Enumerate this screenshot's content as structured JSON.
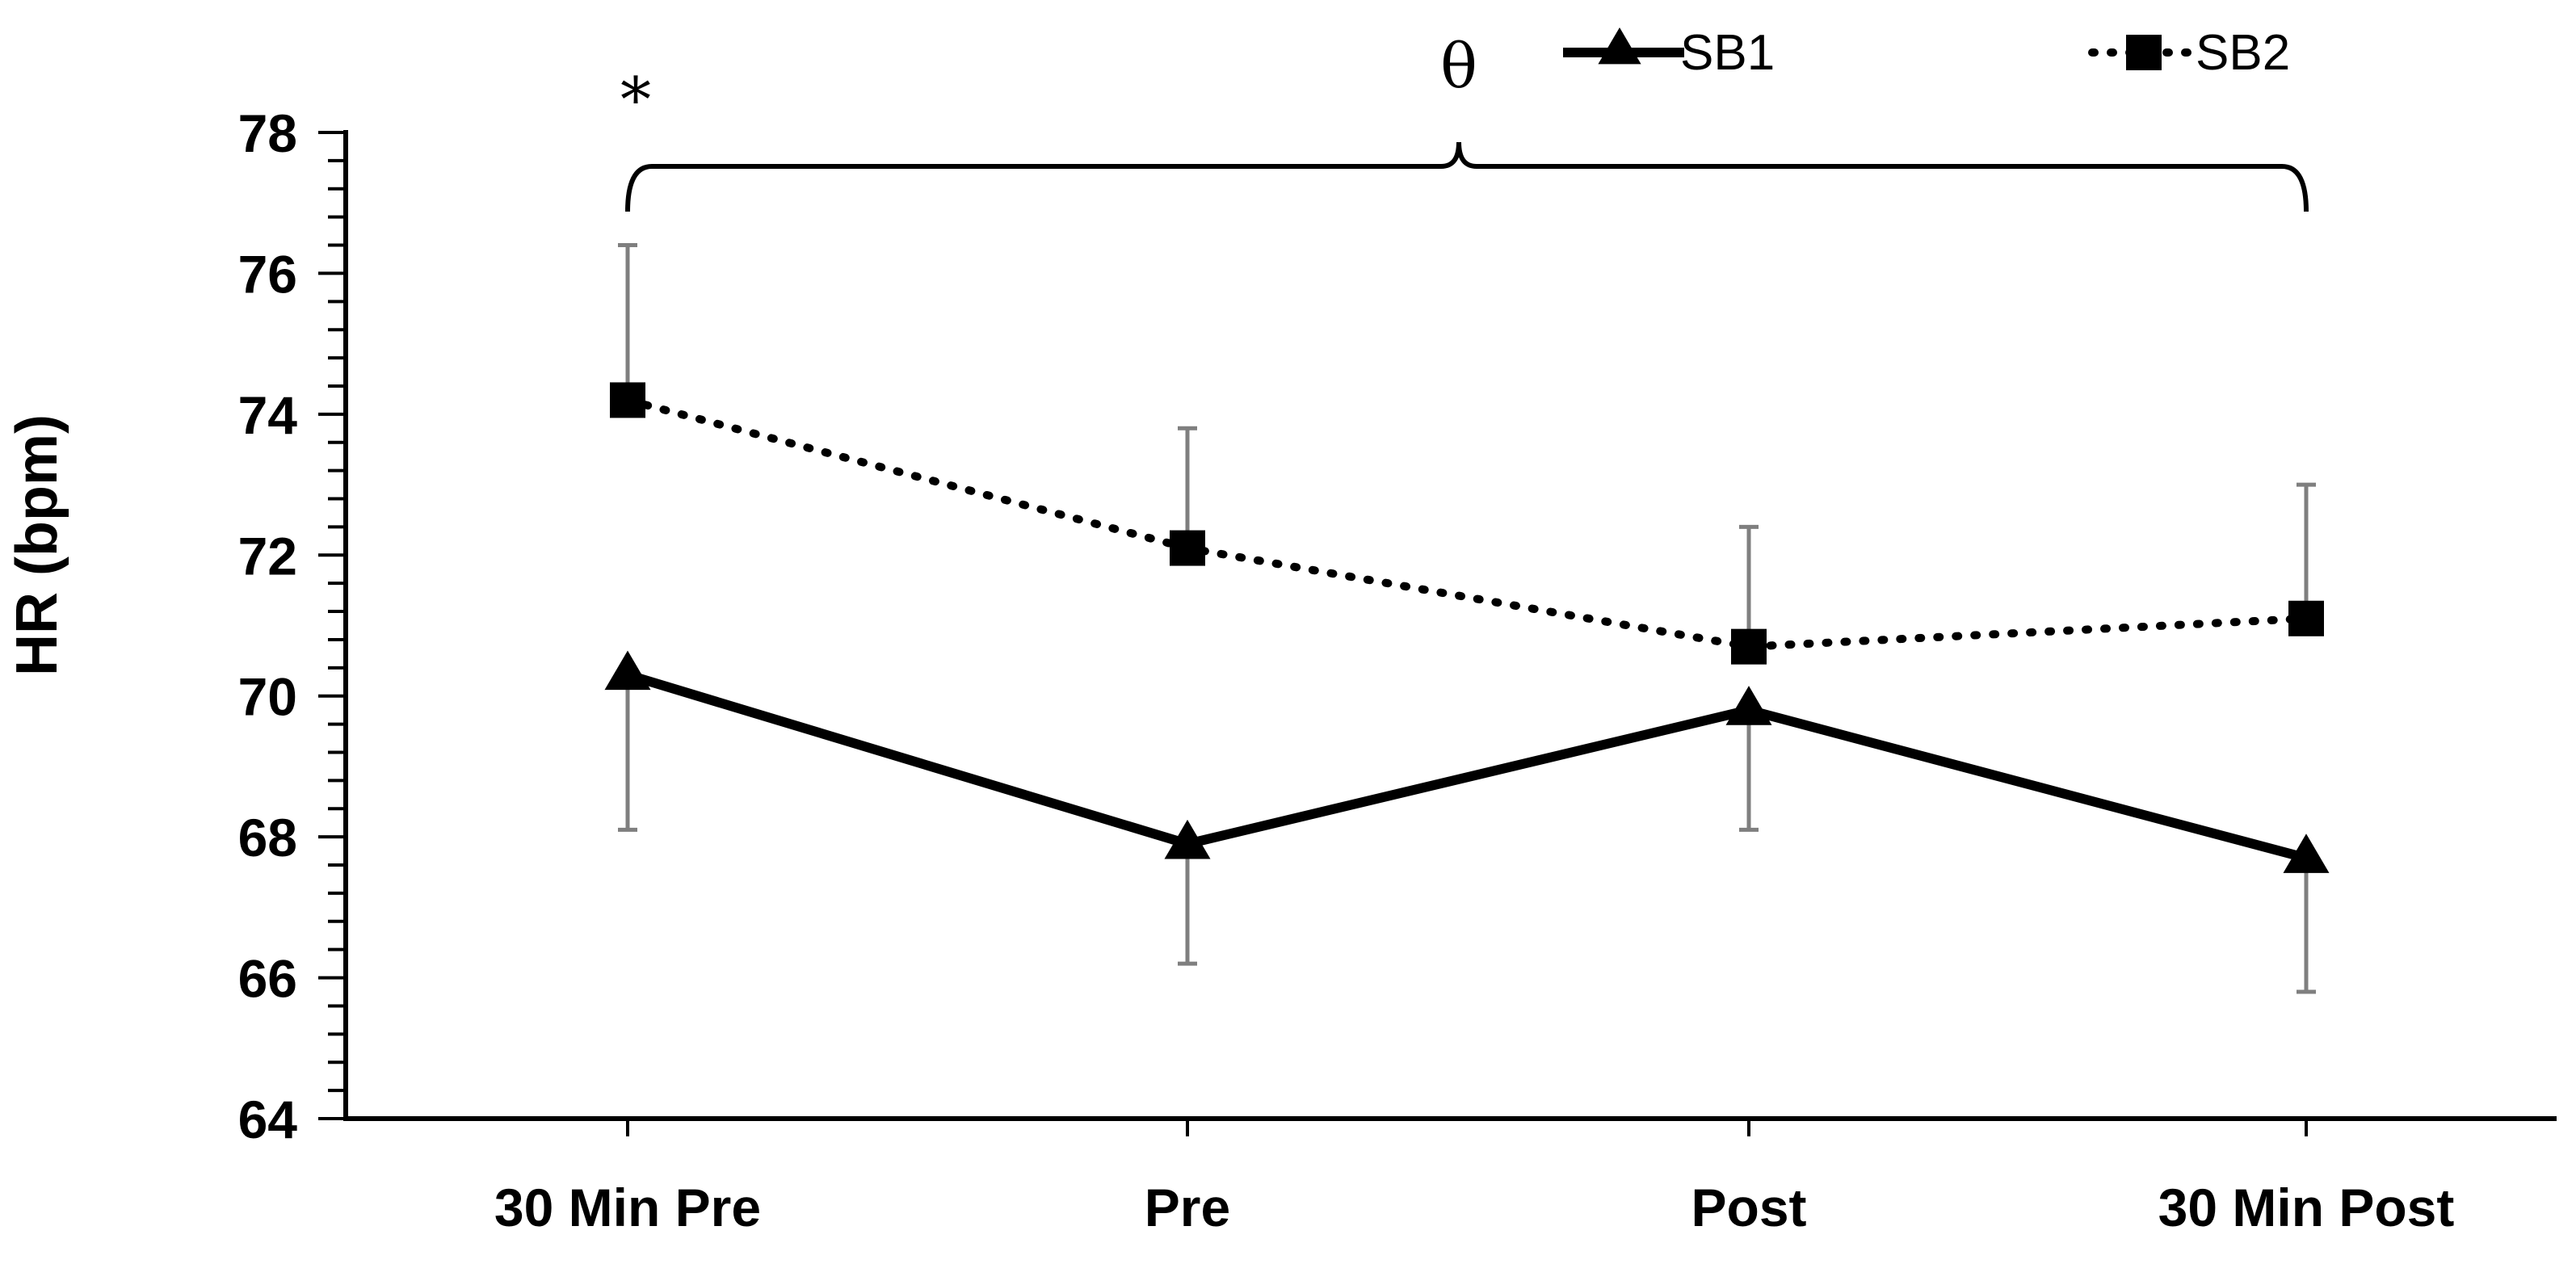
{
  "chart_data": {
    "type": "line",
    "title": "",
    "xlabel": "",
    "ylabel": "HR (bpm)",
    "ylim": [
      64,
      78
    ],
    "yticks": [
      64,
      66,
      68,
      70,
      72,
      74,
      76,
      78
    ],
    "ytick_labels": [
      "64",
      "66",
      "68",
      "70",
      "72",
      "74",
      "76",
      "78"
    ],
    "minor_tick_step": 0.4,
    "categories": [
      "30 Min Pre",
      "Pre",
      "Post",
      "30 Min Post"
    ],
    "series": [
      {
        "name": "SB1",
        "marker": "triangle",
        "line_style": "solid",
        "values": [
          70.3,
          67.9,
          69.8,
          67.7
        ],
        "error_bar_direction": "down",
        "errors": [
          2.2,
          1.7,
          1.7,
          1.9
        ]
      },
      {
        "name": "SB2",
        "marker": "square",
        "line_style": "dotted",
        "values": [
          74.2,
          72.1,
          70.7,
          71.1
        ],
        "error_bar_direction": "up",
        "errors": [
          2.2,
          1.7,
          1.7,
          1.9
        ]
      }
    ],
    "legend_position": "top-right",
    "annotations": [
      {
        "text": "*",
        "category": "30 Min Pre"
      },
      {
        "text": "θ",
        "spans": [
          "30 Min Pre",
          "30 Min Post"
        ]
      }
    ]
  }
}
